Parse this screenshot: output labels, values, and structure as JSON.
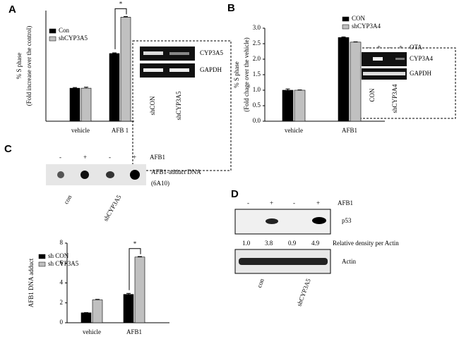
{
  "chart_data": [
    {
      "type": "bar",
      "y_label": [
        "% S phase",
        "(Fold increase over the control)"
      ],
      "categories": [
        "vehicle",
        "AFB 1"
      ],
      "series": [
        {
          "name": "Con",
          "color": "#000000",
          "values": [
            1.0,
            2.05
          ],
          "errors": [
            0.02,
            0.02
          ]
        },
        {
          "name": "shCYP3A5",
          "color": "#c0c0c0",
          "values": [
            1.0,
            3.15
          ],
          "errors": [
            0.03,
            0.02
          ]
        }
      ],
      "ylim": [
        0,
        3.35
      ],
      "annotation": "*"
    },
    {
      "type": "bar",
      "y_label": [
        "% S phase",
        "(Fold chage over the vehicle)"
      ],
      "categories": [
        "vehicle",
        "AFB1"
      ],
      "series": [
        {
          "name": "CON",
          "color": "#000000",
          "values": [
            1.0,
            2.7
          ],
          "errors": [
            0.04,
            0.02
          ]
        },
        {
          "name": "shCYP3A4",
          "color": "#c0c0c0",
          "values": [
            1.0,
            2.55
          ],
          "errors": [
            0.01,
            0.01
          ]
        }
      ],
      "ylim": [
        0,
        3.0
      ],
      "yticks": [
        {
          "value": 0,
          "label": "0.0"
        },
        {
          "value": 0.5,
          "label": "0.5"
        },
        {
          "value": 1,
          "label": "1.0"
        },
        {
          "value": 1.5,
          "label": "1.5"
        },
        {
          "value": 2,
          "label": "2.0"
        },
        {
          "value": 2.5,
          "label": "2.5"
        },
        {
          "value": 3,
          "label": "3.0"
        }
      ]
    },
    {
      "type": "bar",
      "y_label": [
        "AFB1 DNA adduct"
      ],
      "categories": [
        "vehicle",
        "AFB1"
      ],
      "series": [
        {
          "name": "sh CON",
          "color": "#000000",
          "values": [
            1.0,
            2.85
          ],
          "errors": [
            0.02,
            0.1
          ]
        },
        {
          "name": "sh CYP3A5",
          "color": "#c0c0c0",
          "values": [
            2.3,
            6.6
          ],
          "errors": [
            0.05,
            0.05
          ]
        }
      ],
      "ylim": [
        0,
        8
      ],
      "yticks": [
        0,
        2,
        4,
        6,
        8
      ],
      "annotation": "*"
    }
  ],
  "panel_labels": [
    "A",
    "B",
    "C",
    "D"
  ],
  "blot_a": {
    "bands": [
      "CYP3A5",
      "GAPDH"
    ],
    "lanes": [
      "shCON",
      "shCYP3A5"
    ]
  },
  "blot_b": {
    "treatment": "OTA",
    "signs": [
      "-",
      "+",
      "-",
      "+"
    ],
    "bands": [
      "CYP3A4",
      "GAPDH"
    ],
    "lanes": [
      "CON",
      "shCYP3A4"
    ]
  },
  "blot_c": {
    "treatment": "AFB1",
    "signs": [
      "-",
      "+",
      "-",
      "+"
    ],
    "band": [
      "AFB1-adduct DNA",
      "(6A10)"
    ],
    "lanes": [
      "con",
      "shCYP3A5"
    ]
  },
  "blot_d": {
    "treatment": "AFB1",
    "signs": [
      "-",
      "+",
      "-",
      "+"
    ],
    "bands": [
      "p53",
      "Actin"
    ],
    "densities": [
      "1.0",
      "3.8",
      "0.9",
      "4.9"
    ],
    "density_label": "Relative density per Actin",
    "lanes": [
      "con",
      "shCYP3A5"
    ]
  }
}
